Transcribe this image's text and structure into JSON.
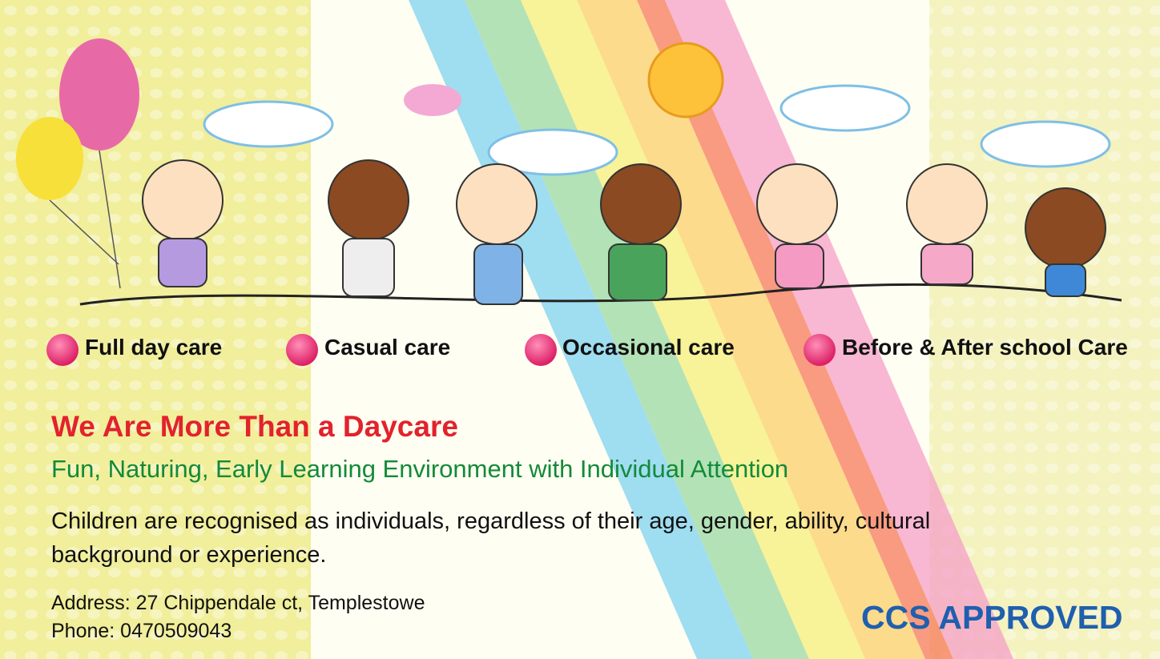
{
  "services": [
    "Full day care",
    "Casual care",
    "Occasional care",
    "Before & After school Care"
  ],
  "headline": "We Are More Than a Daycare",
  "subheadline": "Fun, Naturing, Early Learning Environment with Individual Attention",
  "description": "Children are recognised as individuals, regardless of their age, gender, ability, cultural background or experience.",
  "address": "Address: 27 Chippendale ct, Templestowe",
  "phone": "Phone: 0470509043",
  "badge": "CCS APPROVED"
}
